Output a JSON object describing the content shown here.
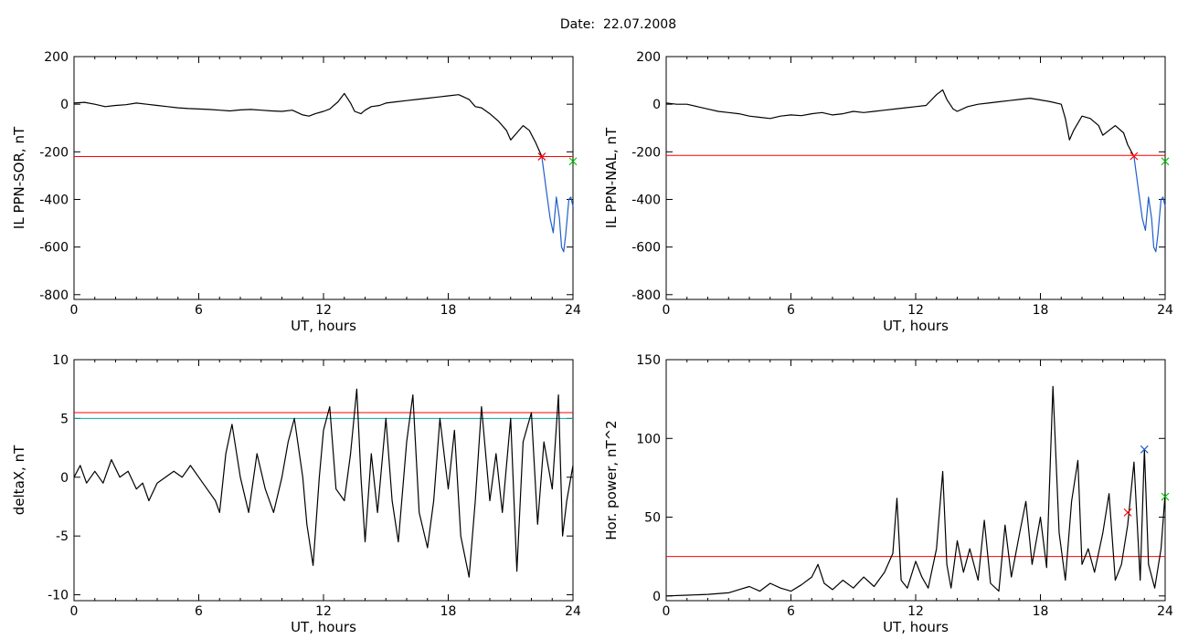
{
  "figure": {
    "date_label": "Date:",
    "date_value": "22.07.2008"
  },
  "chart_data": [
    {
      "type": "line",
      "id": "ppn-sor",
      "title": "",
      "xlabel": "UT, hours",
      "ylabel": "IL PPN-SOR, nT",
      "xlim": [
        0,
        24
      ],
      "ylim": [
        -820,
        200
      ],
      "xticks": [
        0,
        6,
        12,
        18,
        24
      ],
      "yticks": [
        200,
        0,
        -200,
        -400,
        -600,
        -800
      ],
      "series": [
        {
          "color": "#000000",
          "x": [
            0,
            0.5,
            1,
            1.5,
            2,
            2.5,
            3,
            3.5,
            4,
            4.5,
            5,
            5.5,
            6,
            6.5,
            7,
            7.5,
            8,
            8.5,
            9,
            9.5,
            10,
            10.5,
            11,
            11.3,
            11.6,
            12,
            12.3,
            12.7,
            13,
            13.3,
            13.5,
            13.8,
            14,
            14.3,
            14.7,
            15,
            15.5,
            16,
            16.5,
            17,
            17.5,
            18,
            18.5,
            19,
            19.3,
            19.6,
            20,
            20.4,
            20.8,
            21,
            21.3,
            21.6,
            21.9,
            22.2,
            22.5
          ],
          "y": [
            5,
            8,
            0,
            -10,
            -5,
            -2,
            5,
            0,
            -5,
            -10,
            -15,
            -18,
            -20,
            -22,
            -25,
            -28,
            -24,
            -22,
            -25,
            -28,
            -30,
            -25,
            -45,
            -50,
            -40,
            -30,
            -20,
            10,
            45,
            5,
            -30,
            -40,
            -25,
            -10,
            -5,
            5,
            10,
            15,
            20,
            25,
            30,
            35,
            40,
            20,
            -10,
            -15,
            -40,
            -70,
            -110,
            -150,
            -120,
            -90,
            -110,
            -160,
            -220
          ]
        },
        {
          "color": "#1f5fc8",
          "x": [
            22.5,
            22.7,
            22.9,
            23.05,
            23.2,
            23.35,
            23.45,
            23.55,
            23.65,
            23.8,
            23.9,
            24
          ],
          "y": [
            -220,
            -350,
            -480,
            -540,
            -390,
            -480,
            -600,
            -620,
            -550,
            -400,
            -390,
            -430
          ]
        }
      ],
      "thresholds": [
        {
          "value": -220,
          "color": "#ff0000"
        }
      ],
      "markers": [
        {
          "x": 22.5,
          "y": -220,
          "color": "#ff0000",
          "symbol": "x"
        },
        {
          "x": 24,
          "y": -240,
          "color": "#00c000",
          "symbol": "x"
        }
      ]
    },
    {
      "type": "line",
      "id": "ppn-nal",
      "title": "",
      "xlabel": "UT, hours",
      "ylabel": "IL PPN-NAL, nT",
      "xlim": [
        0,
        24
      ],
      "ylim": [
        -820,
        200
      ],
      "xticks": [
        0,
        6,
        12,
        18,
        24
      ],
      "yticks": [
        200,
        0,
        -200,
        -400,
        -600,
        -800
      ],
      "series": [
        {
          "color": "#000000",
          "x": [
            0,
            0.5,
            1,
            1.5,
            2,
            2.5,
            3,
            3.5,
            4,
            4.5,
            5,
            5.5,
            6,
            6.5,
            7,
            7.5,
            8,
            8.5,
            9,
            9.5,
            10,
            10.5,
            11,
            11.5,
            12,
            12.5,
            13,
            13.3,
            13.5,
            13.8,
            14,
            14.5,
            15,
            15.5,
            16,
            16.5,
            17,
            17.5,
            18,
            18.5,
            19,
            19.2,
            19.4,
            19.6,
            20,
            20.4,
            20.8,
            21,
            21.3,
            21.6,
            22,
            22.2,
            22.5
          ],
          "y": [
            5,
            0,
            0,
            -10,
            -20,
            -30,
            -35,
            -40,
            -50,
            -55,
            -60,
            -50,
            -45,
            -48,
            -40,
            -35,
            -45,
            -40,
            -30,
            -35,
            -30,
            -25,
            -20,
            -15,
            -10,
            -5,
            40,
            60,
            20,
            -20,
            -30,
            -10,
            0,
            5,
            10,
            15,
            20,
            25,
            18,
            10,
            0,
            -60,
            -150,
            -110,
            -50,
            -60,
            -90,
            -130,
            -110,
            -90,
            -120,
            -170,
            -220
          ]
        },
        {
          "color": "#1f5fc8",
          "x": [
            22.5,
            22.7,
            22.9,
            23.05,
            23.2,
            23.35,
            23.45,
            23.55,
            23.65,
            23.8,
            23.9,
            24
          ],
          "y": [
            -220,
            -350,
            -480,
            -530,
            -390,
            -480,
            -600,
            -620,
            -550,
            -400,
            -390,
            -430
          ]
        }
      ],
      "thresholds": [
        {
          "value": -215,
          "color": "#ff0000"
        }
      ],
      "markers": [
        {
          "x": 22.5,
          "y": -218,
          "color": "#ff0000",
          "symbol": "x"
        },
        {
          "x": 24,
          "y": -240,
          "color": "#00c000",
          "symbol": "x"
        }
      ]
    },
    {
      "type": "line",
      "id": "deltax",
      "title": "",
      "xlabel": "UT, hours",
      "ylabel": "deltaX, nT",
      "xlim": [
        0,
        24
      ],
      "ylim": [
        -10.5,
        10
      ],
      "xticks": [
        0,
        6,
        12,
        18,
        24
      ],
      "yticks": [
        10,
        5,
        0,
        -5,
        -10
      ],
      "series": [
        {
          "color": "#000000",
          "x": [
            0,
            0.3,
            0.6,
            1,
            1.4,
            1.8,
            2.2,
            2.6,
            3,
            3.3,
            3.6,
            4,
            4.4,
            4.8,
            5.2,
            5.6,
            6,
            6.4,
            6.8,
            7,
            7.3,
            7.6,
            8,
            8.4,
            8.8,
            9.2,
            9.6,
            10,
            10.3,
            10.6,
            11,
            11.2,
            11.5,
            11.8,
            12,
            12.3,
            12.6,
            13,
            13.3,
            13.6,
            13.8,
            14,
            14.3,
            14.6,
            15,
            15.3,
            15.6,
            16,
            16.3,
            16.6,
            17,
            17.3,
            17.6,
            18,
            18.3,
            18.6,
            19,
            19.3,
            19.6,
            20,
            20.3,
            20.6,
            21,
            21.3,
            21.6,
            22,
            22.3,
            22.6,
            23,
            23.3,
            23.5,
            23.7,
            24
          ],
          "y": [
            0,
            1,
            -0.5,
            0.5,
            -0.5,
            1.5,
            0,
            0.5,
            -1,
            -0.5,
            -2,
            -0.5,
            0,
            0.5,
            0,
            1,
            0,
            -1,
            -2,
            -3,
            2,
            4.5,
            0,
            -3,
            2,
            -1,
            -3,
            0,
            3,
            5,
            0,
            -4,
            -7.5,
            0,
            4,
            6,
            -1,
            -2,
            2,
            7.5,
            0,
            -5.5,
            2,
            -3,
            5,
            -2,
            -5.5,
            3,
            7,
            -3,
            -6,
            -2,
            5,
            -1,
            4,
            -5,
            -8.5,
            -2,
            6,
            -2,
            2,
            -3,
            5,
            -8,
            3,
            5.5,
            -4,
            3,
            -1,
            7,
            -5,
            -2,
            1
          ]
        }
      ],
      "thresholds": [
        {
          "value": 5.5,
          "color": "#ff0000"
        },
        {
          "value": 5.0,
          "color": "#00a8a8"
        }
      ],
      "markers": []
    },
    {
      "type": "line",
      "id": "hor-power",
      "title": "",
      "xlabel": "UT, hours",
      "ylabel": "Hor. power, nT^2",
      "xlim": [
        0,
        24
      ],
      "ylim": [
        -3,
        150
      ],
      "xticks": [
        0,
        6,
        12,
        18,
        24
      ],
      "yticks": [
        150,
        100,
        50,
        0
      ],
      "series": [
        {
          "color": "#000000",
          "x": [
            0,
            1,
            2,
            3,
            3.5,
            4,
            4.5,
            5,
            5.5,
            6,
            6.5,
            7,
            7.3,
            7.6,
            8,
            8.5,
            9,
            9.5,
            10,
            10.5,
            10.9,
            11.1,
            11.3,
            11.6,
            12,
            12.3,
            12.6,
            13,
            13.3,
            13.5,
            13.7,
            14,
            14.3,
            14.6,
            15,
            15.3,
            15.6,
            16,
            16.3,
            16.6,
            17,
            17.3,
            17.6,
            18,
            18.3,
            18.6,
            18.9,
            19.2,
            19.5,
            19.8,
            20,
            20.3,
            20.6,
            21,
            21.3,
            21.6,
            21.9,
            22.2,
            22.5,
            22.8,
            23,
            23.2,
            23.5,
            23.8,
            24
          ],
          "y": [
            0,
            0.5,
            1,
            2,
            4,
            6,
            3,
            8,
            5,
            3,
            7,
            12,
            20,
            8,
            4,
            10,
            5,
            12,
            6,
            15,
            27,
            62,
            10,
            5,
            22,
            12,
            5,
            30,
            79,
            20,
            5,
            35,
            15,
            30,
            10,
            48,
            8,
            3,
            45,
            12,
            40,
            60,
            20,
            50,
            18,
            133,
            40,
            10,
            60,
            86,
            20,
            30,
            15,
            40,
            65,
            10,
            20,
            45,
            85,
            10,
            93,
            20,
            5,
            30,
            65
          ]
        }
      ],
      "thresholds": [
        {
          "value": 25,
          "color": "#ff0000"
        }
      ],
      "markers": [
        {
          "x": 22.2,
          "y": 53,
          "color": "#ff0000",
          "symbol": "x"
        },
        {
          "x": 23.0,
          "y": 93,
          "color": "#1f5fc8",
          "symbol": "x"
        },
        {
          "x": 24,
          "y": 63,
          "color": "#00c000",
          "symbol": "x"
        }
      ]
    }
  ]
}
